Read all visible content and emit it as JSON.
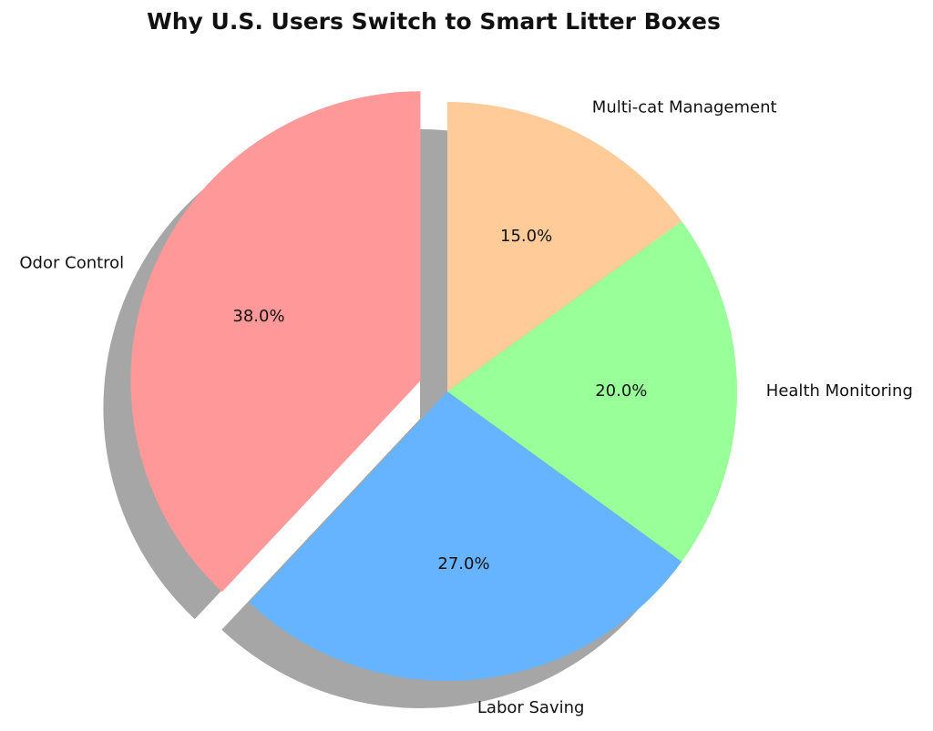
{
  "chart_data": {
    "type": "pie",
    "title": "Why U.S. Users Switch to Smart Litter Boxes",
    "labels": [
      "Odor Control",
      "Labor Saving",
      "Health Monitoring",
      "Multi-cat Management"
    ],
    "values": [
      38.0,
      27.0,
      20.0,
      15.0
    ],
    "value_labels": [
      "38.0%",
      "27.0%",
      "20.0%",
      "15.0%"
    ],
    "colors": [
      "#ff9999",
      "#66b3ff",
      "#99ff99",
      "#ffcc99"
    ],
    "start_angle_deg": 90,
    "direction": "counterclockwise",
    "explode": [
      0.1,
      0,
      0,
      0
    ],
    "shadow": true,
    "legend": "none"
  }
}
